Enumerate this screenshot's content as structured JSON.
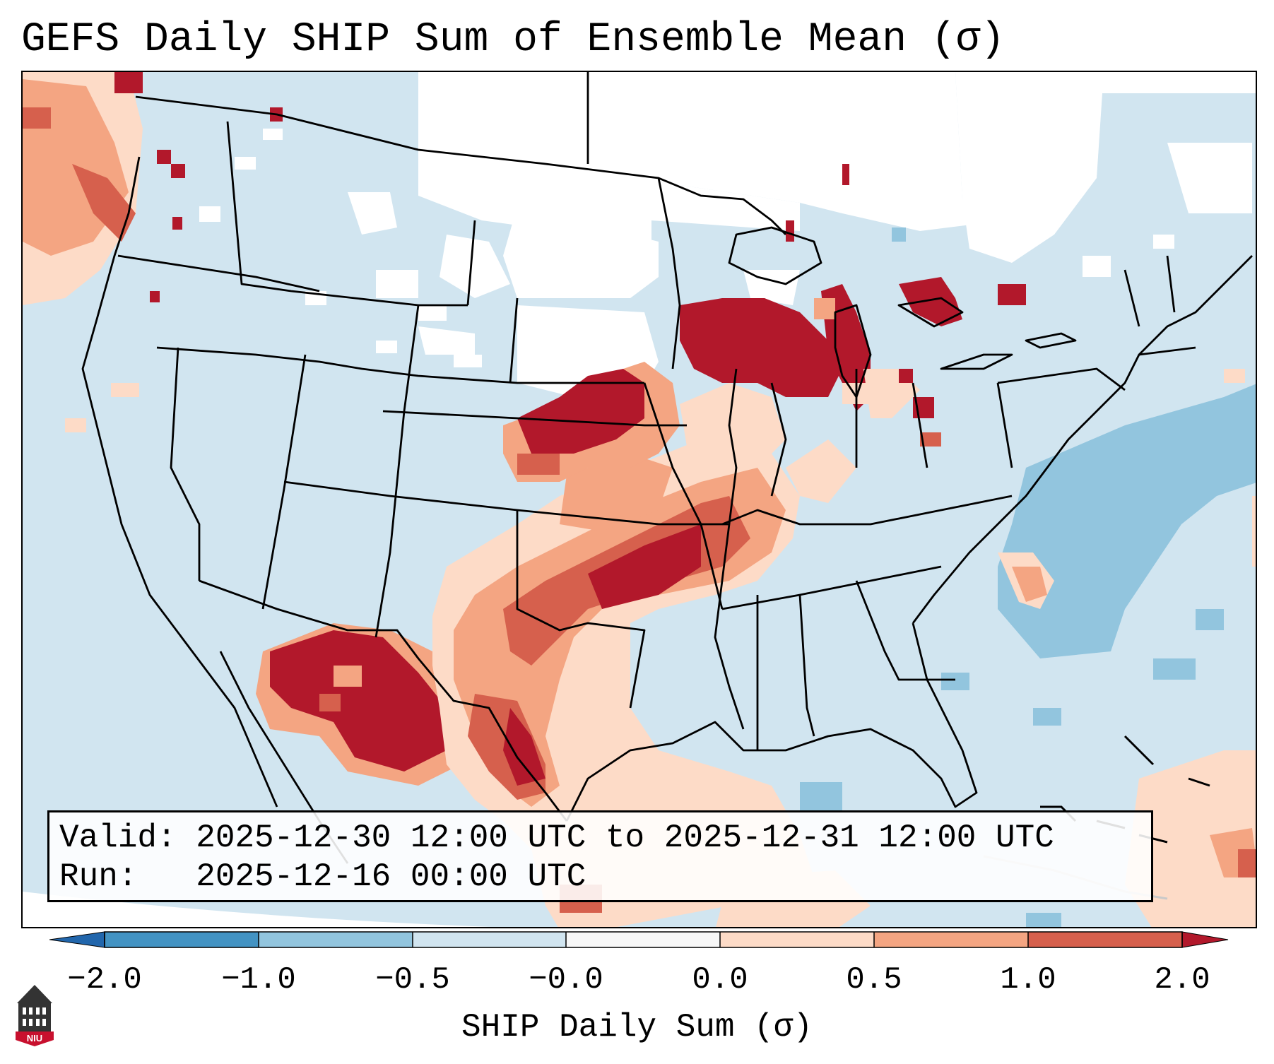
{
  "title": "GEFS Daily SHIP Sum of Ensemble Mean (σ)",
  "info": {
    "valid_line": "Valid: 2025-12-30 12:00 UTC to 2025-12-31 12:00 UTC",
    "run_line": "Run:   2025-12-16 00:00 UTC"
  },
  "colorbar": {
    "label": "SHIP Daily Sum (σ)",
    "tick_labels": [
      "−2.0",
      "−1.0",
      "−0.5",
      "−0.0",
      "0.0",
      "0.5",
      "1.0",
      "2.0"
    ],
    "colors": [
      "#2166ac",
      "#4393c3",
      "#92c5de",
      "#d1e5f0",
      "#f7f7f7",
      "#fddbc7",
      "#f4a582",
      "#d6604d",
      "#b2182b"
    ]
  },
  "map_colors": {
    "background_light_blue": "#d1e5f0",
    "medium_blue": "#92c5de",
    "dark_red": "#b2182b",
    "red": "#d6604d",
    "salmon": "#f4a582",
    "light_salmon": "#fddbc7",
    "empty": "#ffffff",
    "borders": "#000000"
  },
  "logo": {
    "text": "NIU",
    "icon": "niu-building-icon",
    "color": "#c8102e"
  }
}
